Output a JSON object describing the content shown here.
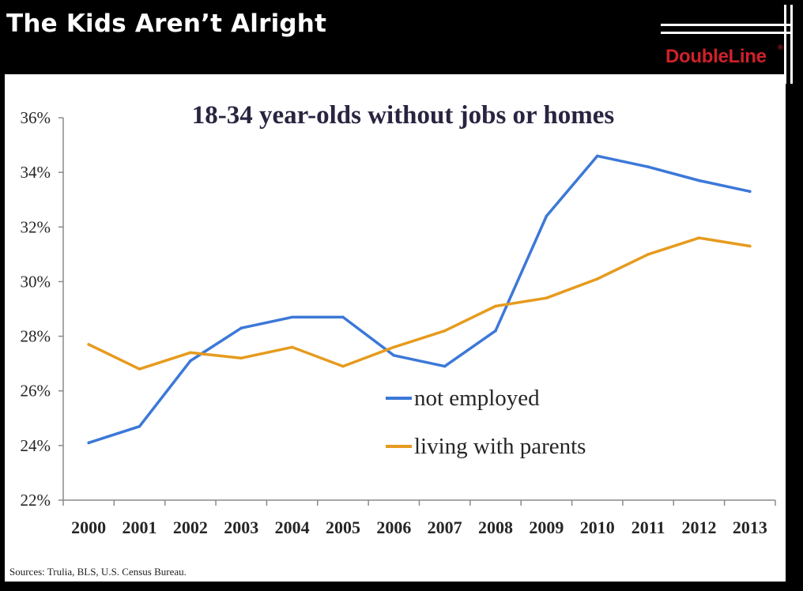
{
  "slide": {
    "title": "The Kids Aren’t Alright",
    "brand": "DoubleLine",
    "brand_mark": "®",
    "source": "Sources: Trulia, BLS, U.S. Census Bureau."
  },
  "colors": {
    "background": "#000000",
    "panel": "#ffffff",
    "brand": "#d0202a",
    "not_employed": "#3c78d8",
    "living_with_parents": "#e69b1e"
  },
  "chart_data": {
    "type": "line",
    "title": "18-34 year-olds without jobs or homes",
    "xlabel": "",
    "ylabel": "",
    "x": [
      "2000",
      "2001",
      "2002",
      "2003",
      "2004",
      "2005",
      "2006",
      "2007",
      "2008",
      "2009",
      "2010",
      "2011",
      "2012",
      "2013"
    ],
    "ylim": [
      22,
      36
    ],
    "yticks": [
      "22%",
      "24%",
      "26%",
      "28%",
      "30%",
      "32%",
      "34%",
      "36%"
    ],
    "grid": false,
    "legend_position": "lower-center",
    "series": [
      {
        "name": "not employed",
        "color": "#3c78d8",
        "values": [
          24.1,
          24.7,
          27.1,
          28.3,
          28.7,
          28.7,
          27.3,
          26.9,
          28.2,
          32.4,
          34.6,
          34.2,
          33.7,
          33.3
        ]
      },
      {
        "name": "living with parents",
        "color": "#e69b1e",
        "values": [
          27.7,
          26.8,
          27.4,
          27.2,
          27.6,
          26.9,
          27.6,
          28.2,
          29.1,
          29.4,
          30.1,
          31.0,
          31.6,
          31.3
        ]
      }
    ]
  }
}
